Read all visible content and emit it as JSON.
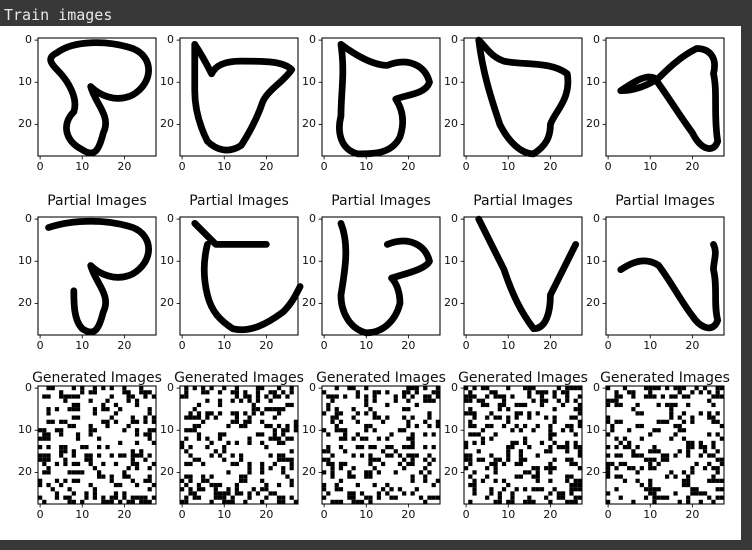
{
  "output_label": "Train images",
  "axis_ticks": {
    "x": [
      "0",
      "10",
      "20"
    ],
    "y": [
      "0",
      "10",
      "20"
    ]
  },
  "rows": [
    {
      "title": "",
      "panels": 5
    },
    {
      "title": "Partial Images",
      "panels": 5
    },
    {
      "title": "Generated Images",
      "panels": 5
    }
  ],
  "colors": {
    "background": "#383838",
    "figure": "#ffffff",
    "ink": "#000000"
  }
}
